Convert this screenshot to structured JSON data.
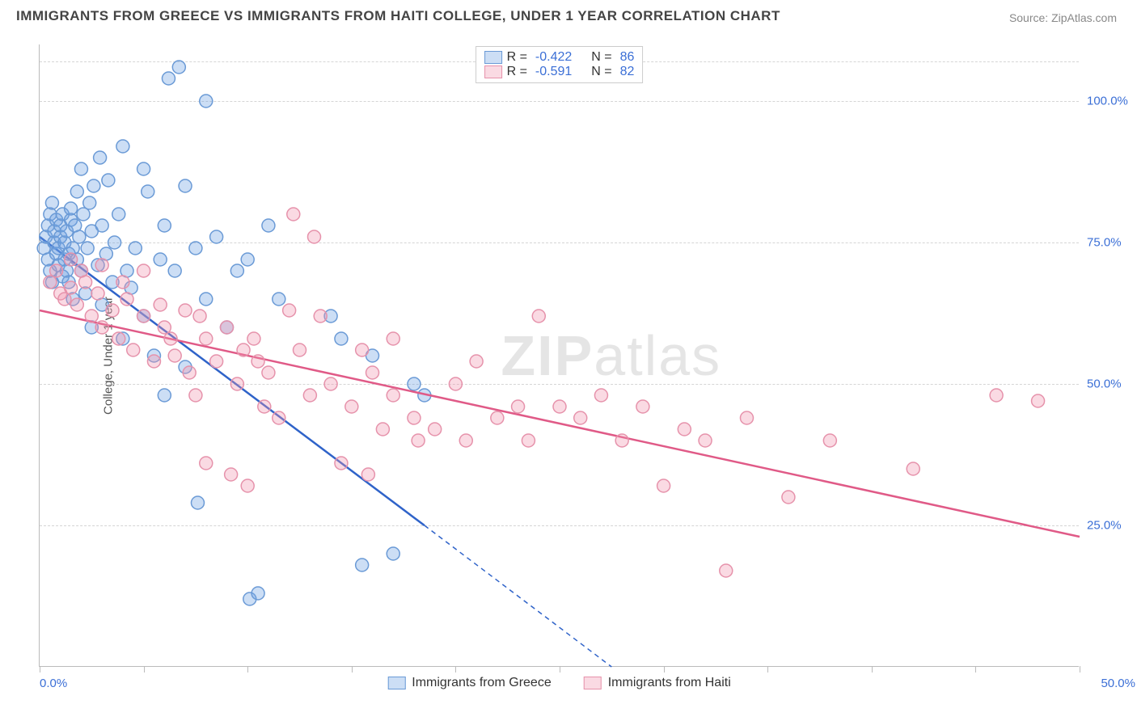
{
  "title": "IMMIGRANTS FROM GREECE VS IMMIGRANTS FROM HAITI COLLEGE, UNDER 1 YEAR CORRELATION CHART",
  "source": "Source: ZipAtlas.com",
  "ylabel": "College, Under 1 year",
  "watermark": {
    "part1": "ZIP",
    "part2": "atlas"
  },
  "chart": {
    "type": "scatter",
    "xlim": [
      0,
      50
    ],
    "ylim": [
      0,
      110
    ],
    "x_tick_positions": [
      0,
      5,
      10,
      15,
      20,
      25,
      30,
      35,
      40,
      45,
      50
    ],
    "x_axis_labels": {
      "first": "0.0%",
      "last": "50.0%"
    },
    "y_gridlines": [
      25,
      50,
      75,
      100,
      107
    ],
    "y_tick_labels": [
      {
        "value": 25,
        "label": "25.0%"
      },
      {
        "value": 50,
        "label": "50.0%"
      },
      {
        "value": 75,
        "label": "75.0%"
      },
      {
        "value": 100,
        "label": "100.0%"
      }
    ],
    "grid_color": "#d5d5d5",
    "axis_color": "#bbbbbb",
    "tick_label_color": "#3b6fd6",
    "background_color": "#ffffff",
    "marker_radius": 8,
    "marker_stroke_width": 1.5,
    "line_width": 2.5,
    "series": [
      {
        "name": "Immigrants from Greece",
        "fill": "rgba(110,160,225,0.35)",
        "stroke": "#6a9ad6",
        "line_stroke": "#2f63c9",
        "R": "-0.422",
        "N": "86",
        "trend_solid": {
          "x1": 0,
          "y1": 76,
          "x2": 18.5,
          "y2": 25
        },
        "trend_dashed": {
          "x1": 18.5,
          "y1": 25,
          "x2": 27.5,
          "y2": 0
        },
        "points": [
          [
            0.2,
            74
          ],
          [
            0.3,
            76
          ],
          [
            0.4,
            72
          ],
          [
            0.4,
            78
          ],
          [
            0.5,
            70
          ],
          [
            0.5,
            80
          ],
          [
            0.6,
            68
          ],
          [
            0.6,
            82
          ],
          [
            0.7,
            75
          ],
          [
            0.7,
            77
          ],
          [
            0.8,
            73
          ],
          [
            0.8,
            79
          ],
          [
            0.9,
            71
          ],
          [
            0.9,
            74
          ],
          [
            1.0,
            76
          ],
          [
            1.0,
            78
          ],
          [
            1.1,
            69
          ],
          [
            1.1,
            80
          ],
          [
            1.2,
            72
          ],
          [
            1.2,
            75
          ],
          [
            1.3,
            77
          ],
          [
            1.3,
            70
          ],
          [
            1.4,
            73
          ],
          [
            1.4,
            68
          ],
          [
            1.5,
            79
          ],
          [
            1.5,
            81
          ],
          [
            1.6,
            74
          ],
          [
            1.6,
            65
          ],
          [
            1.7,
            78
          ],
          [
            1.8,
            84
          ],
          [
            1.8,
            72
          ],
          [
            1.9,
            76
          ],
          [
            2.0,
            70
          ],
          [
            2.0,
            88
          ],
          [
            2.1,
            80
          ],
          [
            2.2,
            66
          ],
          [
            2.3,
            74
          ],
          [
            2.4,
            82
          ],
          [
            2.5,
            77
          ],
          [
            2.5,
            60
          ],
          [
            2.6,
            85
          ],
          [
            2.8,
            71
          ],
          [
            2.9,
            90
          ],
          [
            3.0,
            64
          ],
          [
            3.0,
            78
          ],
          [
            3.2,
            73
          ],
          [
            3.3,
            86
          ],
          [
            3.5,
            68
          ],
          [
            3.6,
            75
          ],
          [
            3.8,
            80
          ],
          [
            4.0,
            58
          ],
          [
            4.0,
            92
          ],
          [
            4.2,
            70
          ],
          [
            4.4,
            67
          ],
          [
            4.6,
            74
          ],
          [
            5.0,
            88
          ],
          [
            5.0,
            62
          ],
          [
            5.2,
            84
          ],
          [
            5.5,
            55
          ],
          [
            5.8,
            72
          ],
          [
            6.0,
            78
          ],
          [
            6.0,
            48
          ],
          [
            6.2,
            104
          ],
          [
            6.5,
            70
          ],
          [
            6.7,
            106
          ],
          [
            7.0,
            53
          ],
          [
            7.0,
            85
          ],
          [
            7.5,
            74
          ],
          [
            7.6,
            29
          ],
          [
            8.0,
            65
          ],
          [
            8.0,
            100
          ],
          [
            8.5,
            76
          ],
          [
            9.0,
            60
          ],
          [
            9.5,
            70
          ],
          [
            10.0,
            72
          ],
          [
            10.1,
            12
          ],
          [
            10.5,
            13
          ],
          [
            11.0,
            78
          ],
          [
            11.5,
            65
          ],
          [
            14.0,
            62
          ],
          [
            14.5,
            58
          ],
          [
            15.5,
            18
          ],
          [
            16.0,
            55
          ],
          [
            17.0,
            20
          ],
          [
            18.0,
            50
          ],
          [
            18.5,
            48
          ]
        ]
      },
      {
        "name": "Immigrants from Haiti",
        "fill": "rgba(240,150,175,0.35)",
        "stroke": "#e692ab",
        "line_stroke": "#e05a87",
        "R": "-0.591",
        "N": "82",
        "trend_solid": {
          "x1": 0,
          "y1": 63,
          "x2": 50,
          "y2": 23
        },
        "trend_dashed": null,
        "points": [
          [
            0.5,
            68
          ],
          [
            0.8,
            70
          ],
          [
            1.0,
            66
          ],
          [
            1.2,
            65
          ],
          [
            1.5,
            67
          ],
          [
            1.5,
            72
          ],
          [
            1.8,
            64
          ],
          [
            2.0,
            70
          ],
          [
            2.2,
            68
          ],
          [
            2.5,
            62
          ],
          [
            2.8,
            66
          ],
          [
            3.0,
            60
          ],
          [
            3.0,
            71
          ],
          [
            3.5,
            63
          ],
          [
            3.8,
            58
          ],
          [
            4.0,
            68
          ],
          [
            4.2,
            65
          ],
          [
            4.5,
            56
          ],
          [
            5.0,
            70
          ],
          [
            5.0,
            62
          ],
          [
            5.5,
            54
          ],
          [
            5.8,
            64
          ],
          [
            6.0,
            60
          ],
          [
            6.3,
            58
          ],
          [
            6.5,
            55
          ],
          [
            7.0,
            63
          ],
          [
            7.2,
            52
          ],
          [
            7.5,
            48
          ],
          [
            7.7,
            62
          ],
          [
            8.0,
            58
          ],
          [
            8.0,
            36
          ],
          [
            8.5,
            54
          ],
          [
            9.0,
            60
          ],
          [
            9.2,
            34
          ],
          [
            9.5,
            50
          ],
          [
            9.8,
            56
          ],
          [
            10.0,
            32
          ],
          [
            10.3,
            58
          ],
          [
            10.5,
            54
          ],
          [
            10.8,
            46
          ],
          [
            11.0,
            52
          ],
          [
            11.5,
            44
          ],
          [
            12.0,
            63
          ],
          [
            12.2,
            80
          ],
          [
            12.5,
            56
          ],
          [
            13.0,
            48
          ],
          [
            13.2,
            76
          ],
          [
            13.5,
            62
          ],
          [
            14.0,
            50
          ],
          [
            14.5,
            36
          ],
          [
            15.0,
            46
          ],
          [
            15.5,
            56
          ],
          [
            15.8,
            34
          ],
          [
            16.0,
            52
          ],
          [
            16.5,
            42
          ],
          [
            17.0,
            58
          ],
          [
            17.0,
            48
          ],
          [
            18.0,
            44
          ],
          [
            18.2,
            40
          ],
          [
            19.0,
            42
          ],
          [
            20.0,
            50
          ],
          [
            20.5,
            40
          ],
          [
            21.0,
            54
          ],
          [
            22.0,
            44
          ],
          [
            23.0,
            46
          ],
          [
            23.5,
            40
          ],
          [
            24.0,
            62
          ],
          [
            25.0,
            46
          ],
          [
            26.0,
            44
          ],
          [
            27.0,
            48
          ],
          [
            28.0,
            40
          ],
          [
            29.0,
            46
          ],
          [
            30.0,
            32
          ],
          [
            31.0,
            42
          ],
          [
            32.0,
            40
          ],
          [
            33.0,
            17
          ],
          [
            34.0,
            44
          ],
          [
            36.0,
            30
          ],
          [
            38.0,
            40
          ],
          [
            42.0,
            35
          ],
          [
            46.0,
            48
          ],
          [
            48.0,
            47
          ]
        ]
      }
    ]
  },
  "legend_top_labels": {
    "R": "R =",
    "N": "N ="
  }
}
